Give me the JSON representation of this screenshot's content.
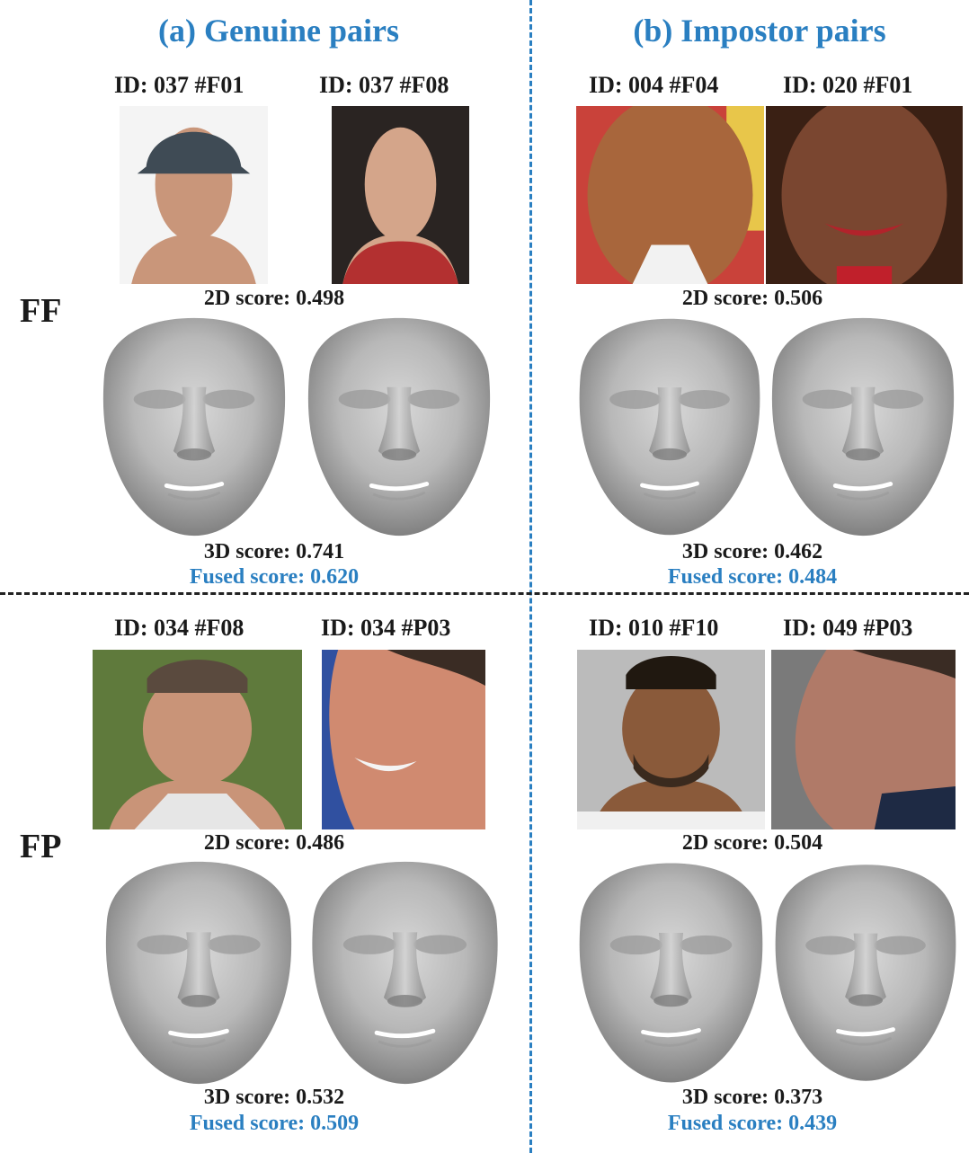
{
  "columns": {
    "genuine_title": "(a) Genuine pairs",
    "impostor_title": "(b) Impostor pairs"
  },
  "rows": {
    "ff_label": "FF",
    "fp_label": "FP"
  },
  "ff_genuine": {
    "id_left": "ID: 037 #F01",
    "id_right": "ID: 037 #F08",
    "score_2d": "2D score: 0.498",
    "score_3d": "3D score: 0.741",
    "score_fused": "Fused score: 0.620"
  },
  "ff_impostor": {
    "id_left": "ID: 004 #F04",
    "id_right": "ID: 020 #F01",
    "score_2d": "2D score: 0.506",
    "score_3d": "3D score: 0.462",
    "score_fused": "Fused score: 0.484"
  },
  "fp_genuine": {
    "id_left": "ID: 034 #F08",
    "id_right": "ID: 034 #P03",
    "score_2d": "2D score: 0.486",
    "score_3d": "3D score: 0.532",
    "score_fused": "Fused score: 0.509"
  },
  "fp_impostor": {
    "id_left": "ID: 010 #F10",
    "id_right": "ID: 049 #P03",
    "score_2d": "2D score: 0.504",
    "score_3d": "3D score: 0.373",
    "score_fused": "Fused score: 0.439"
  },
  "colors": {
    "accent": "#2a7fc1",
    "text": "#1a1a1a",
    "divider": "#222222"
  }
}
